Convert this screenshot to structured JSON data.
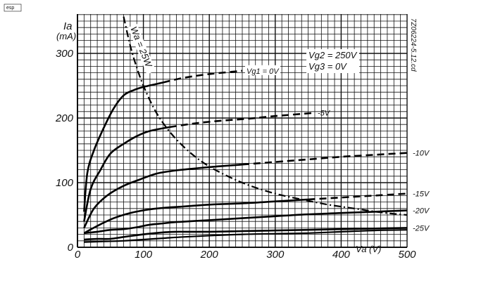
{
  "corner_mark": "esp",
  "side_code": "7Z06224-5.12.cd",
  "chart_data": {
    "type": "line",
    "xlabel": "Va (V)",
    "ylabel_top": "Ia",
    "ylabel_unit": "(mA)",
    "xlim": [
      0,
      500
    ],
    "ylim": [
      0,
      300
    ],
    "x_ticks": [
      0,
      100,
      200,
      300,
      400,
      500
    ],
    "x_tick_labels": [
      "0",
      "100",
      "200",
      "300",
      "400",
      "500"
    ],
    "y_ticks": [
      0,
      100,
      200,
      300
    ],
    "y_tick_labels": [
      "0",
      "100",
      "200",
      "300"
    ],
    "grid": true,
    "conditions": [
      "Vg2 = 250V",
      "Vg3 = 0V"
    ],
    "series": [
      {
        "name": "Vg1 = 0V",
        "dash_after_x": 130,
        "x": [
          10,
          15,
          25,
          40,
          55,
          70,
          85,
          100,
          130,
          160,
          200,
          250
        ],
        "y": [
          55,
          115,
          150,
          185,
          215,
          235,
          243,
          248,
          255,
          262,
          268,
          273
        ]
      },
      {
        "name": "-5V",
        "dash_after_x": 150,
        "x": [
          10,
          20,
          35,
          50,
          70,
          90,
          110,
          140,
          180,
          220,
          260,
          300,
          360
        ],
        "y": [
          40,
          90,
          120,
          145,
          160,
          172,
          180,
          186,
          192,
          196,
          199,
          203,
          208
        ]
      },
      {
        "name": "-10V",
        "dash_after_x": 250,
        "x": [
          10,
          25,
          45,
          70,
          95,
          120,
          150,
          200,
          250,
          300,
          350,
          400,
          450,
          500
        ],
        "y": [
          30,
          60,
          80,
          95,
          105,
          114,
          119,
          124,
          128,
          132,
          136,
          140,
          143,
          146
        ]
      },
      {
        "name": "-15V",
        "dash_after_x": 350,
        "x": [
          10,
          30,
          55,
          80,
          105,
          130,
          160,
          200,
          250,
          300,
          350,
          400,
          450,
          500
        ],
        "y": [
          22,
          33,
          45,
          53,
          58,
          61,
          63,
          66,
          68,
          71,
          74,
          77,
          80,
          83
        ]
      },
      {
        "name": "-20V",
        "dash_after_x": 500,
        "x": [
          10,
          30,
          50,
          70,
          90,
          110,
          130,
          150,
          200,
          250,
          300,
          350,
          400,
          450,
          500
        ],
        "y": [
          22,
          24,
          27,
          28,
          31,
          35,
          37,
          39,
          42,
          45,
          48,
          51,
          53,
          55,
          57
        ]
      },
      {
        "name": "-25V",
        "dash_after_x": 500,
        "x": [
          10,
          30,
          50,
          70,
          100,
          130,
          150,
          200,
          250,
          300,
          350,
          400,
          450,
          500
        ],
        "y": [
          12,
          13,
          13,
          16,
          20,
          23,
          24,
          24,
          25,
          26,
          27,
          28,
          29,
          30
        ]
      }
    ],
    "second_set": [
      {
        "x": [
          10,
          40,
          70,
          100,
          130,
          160,
          200,
          250,
          300,
          350,
          400,
          450,
          500
        ],
        "y": [
          8,
          9,
          10,
          12,
          14,
          16,
          18,
          20,
          21,
          22,
          24,
          26,
          27
        ]
      }
    ],
    "power_curve": {
      "name": "Wa = 25W",
      "x": [
        70,
        80,
        90,
        100,
        115,
        130,
        150,
        175,
        200,
        230,
        260,
        300,
        340,
        380,
        420,
        460,
        500
      ],
      "y": [
        357,
        312,
        278,
        250,
        217,
        192,
        167,
        143,
        125,
        109,
        96,
        83,
        74,
        66,
        60,
        54,
        50
      ]
    }
  }
}
